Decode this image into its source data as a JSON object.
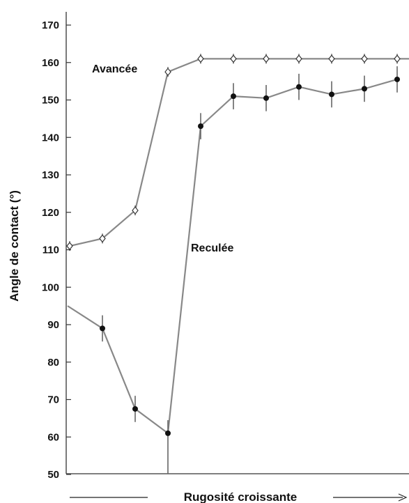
{
  "chart_data": {
    "type": "line",
    "title": "",
    "xlabel": "Rugosité croissante",
    "ylabel": "Angle de contact (°)",
    "ylim": [
      50,
      170
    ],
    "yticks": [
      50,
      60,
      70,
      80,
      90,
      100,
      110,
      120,
      130,
      140,
      150,
      160,
      170
    ],
    "x": [
      1,
      2,
      3,
      4,
      5,
      6,
      7,
      8,
      9,
      10,
      11,
      12
    ],
    "grid": false,
    "series": [
      {
        "name": "Avancée",
        "marker": "open-diamond",
        "values": [
          111,
          113,
          120.5,
          157.5,
          161,
          161,
          161,
          161,
          161,
          161,
          161,
          161
        ]
      },
      {
        "name": "Reculée",
        "marker": "filled-circle",
        "line_start": 95,
        "values": [
          89,
          67.5,
          61,
          143,
          151,
          150.5,
          153.5,
          151.5,
          153,
          155.5
        ],
        "x": [
          2,
          3,
          4,
          5,
          6,
          7,
          8,
          9,
          10,
          11
        ],
        "error": [
          3.5,
          3.5,
          3.5,
          3.5,
          3.5,
          3.5,
          3.5,
          3.5,
          3.5,
          3.5
        ]
      }
    ]
  }
}
